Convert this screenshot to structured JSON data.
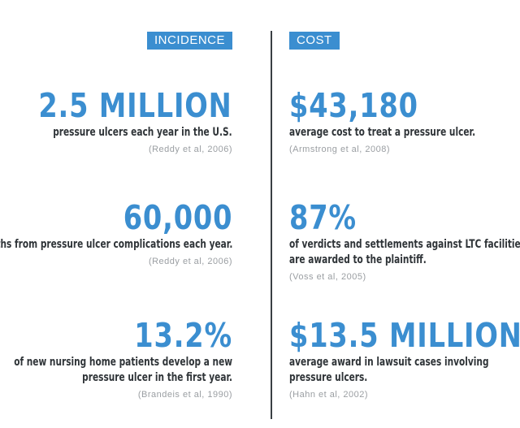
{
  "incidence": {
    "header": "INCIDENCE",
    "stats": [
      {
        "value": "2.5 MILLION",
        "desc": [
          "pressure ulcers each year in the U.S."
        ],
        "source": "(Reddy et al, 2006)"
      },
      {
        "value": "60,000",
        "desc": [
          "deaths from pressure ulcer complications each year."
        ],
        "source": "(Reddy et al, 2006)"
      },
      {
        "value": "13.2%",
        "desc": [
          "of new nursing home patients develop a new",
          "pressure ulcer in the first year."
        ],
        "source": "(Brandeis et al, 1990)"
      }
    ]
  },
  "cost": {
    "header": "COST",
    "stats": [
      {
        "value": "$43,180",
        "desc": [
          "average cost to treat a pressure ulcer."
        ],
        "source": "(Armstrong et al, 2008)"
      },
      {
        "value": "87%",
        "desc": [
          "of verdicts and settlements against LTC facilities",
          "are awarded to the plaintiff."
        ],
        "source": "(Voss et al, 2005)"
      },
      {
        "value": "$13.5 MILLION",
        "desc": [
          "average award in lawsuit cases involving",
          "pressure ulcers."
        ],
        "source": "(Hahn et al, 2002)"
      }
    ]
  },
  "colors": {
    "accent": "#3b8ed0",
    "text": "#2f3438",
    "source": "#9a9ea2",
    "divider": "#3a3f44"
  }
}
